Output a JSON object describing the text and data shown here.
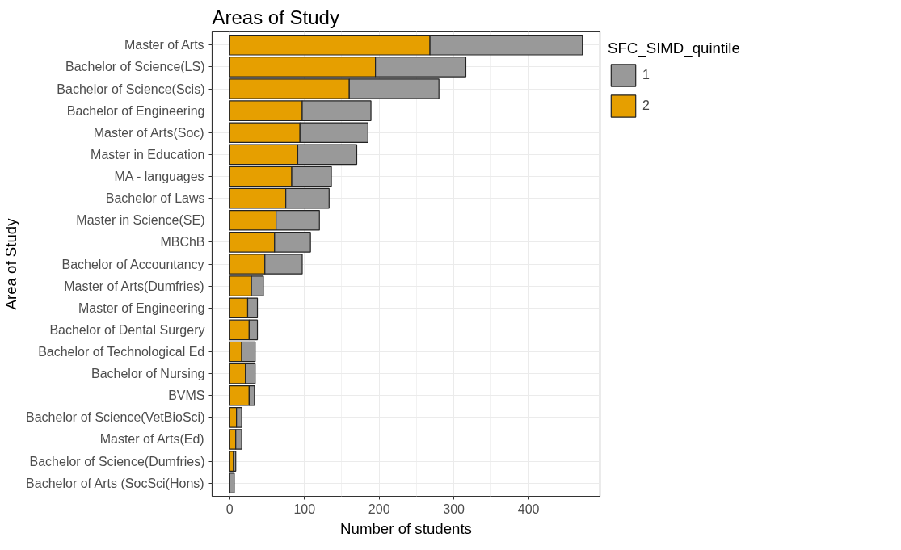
{
  "chart_data": {
    "type": "bar",
    "orientation": "horizontal",
    "stacked": true,
    "title": "Areas of Study",
    "xlabel": "Number of students",
    "ylabel": "Area of Study",
    "legend_title": "SFC_SIMD_quintile",
    "categories": [
      "Master of Arts",
      "Bachelor of Science(LS)",
      "Bachelor of Science(Scis)",
      "Bachelor of Engineering",
      "Master of Arts(Soc)",
      "Master in Education",
      "MA - languages",
      "Bachelor of Laws",
      "Master in Science(SE)",
      "MBChB",
      "Bachelor of Accountancy",
      "Master of Arts(Dumfries)",
      "Master of Engineering",
      "Bachelor of Dental Surgery",
      "Bachelor of Technological Ed",
      "Bachelor of Nursing",
      "BVMS",
      "Bachelor of Science(VetBioSci)",
      "Master of Arts(Ed)",
      "Bachelor of Science(Dumfries)",
      "Bachelor of Arts (SocSci(Hons)"
    ],
    "series": [
      {
        "name": "2",
        "color": "#e69f00",
        "values": [
          268,
          195,
          160,
          97,
          94,
          91,
          83,
          75,
          62,
          60,
          47,
          29,
          24,
          26,
          16,
          21,
          26,
          9,
          8,
          5,
          null
        ]
      },
      {
        "name": "1",
        "color": "#999999",
        "values": [
          204,
          121,
          120,
          92,
          91,
          79,
          53,
          58,
          58,
          48,
          50,
          16,
          13,
          11,
          18,
          13,
          7,
          7,
          8,
          3,
          6
        ]
      }
    ],
    "xlim": [
      -23.6,
      495.6
    ],
    "xticks": [
      0,
      100,
      200,
      300,
      400
    ],
    "grid": true,
    "legend": "right"
  }
}
